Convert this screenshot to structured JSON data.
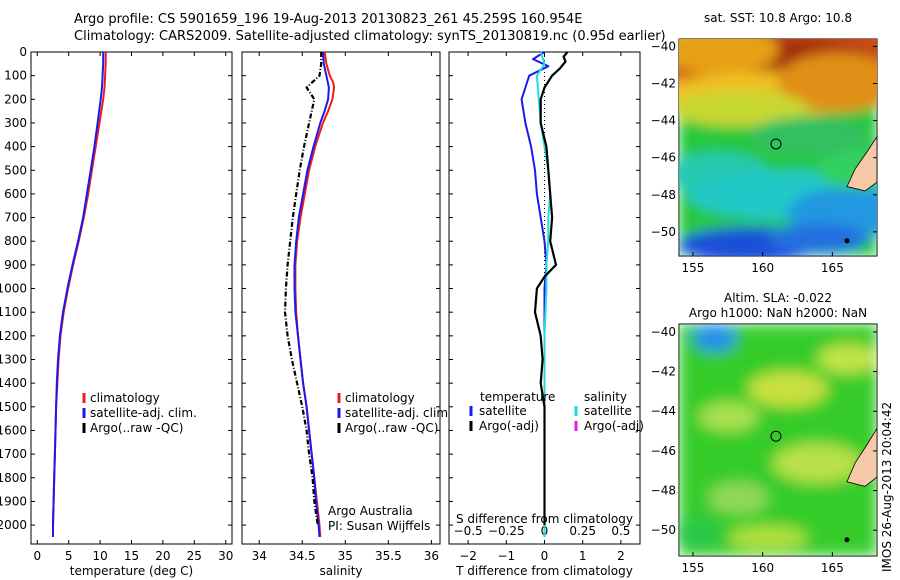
{
  "header": {
    "line1": "Argo profile: CS 5901659_196 19-Aug-2013 20130823_261 45.259S 160.954E",
    "line2": "Climatology: CARS2009. Satellite-adjusted climatology: synTS_20130819.nc (0.95d earlier)"
  },
  "side_text": "IMOS 26-Aug-2013 20:04:42",
  "colors": {
    "red": "#ee1c1c",
    "blue": "#1a1aee",
    "black": "#000000",
    "cyan": "#22dddd",
    "magenta": "#dd22dd"
  },
  "chart_data": [
    {
      "type": "line",
      "panel": "temperature",
      "xlabel": "temperature (deg C)",
      "xlim": [
        -1,
        31
      ],
      "xticks": [
        0,
        5,
        10,
        15,
        20,
        25,
        30
      ],
      "ylim": [
        2080,
        0
      ],
      "yticks": [
        0,
        100,
        200,
        300,
        400,
        500,
        600,
        700,
        800,
        900,
        1000,
        1100,
        1200,
        1300,
        1400,
        1500,
        1600,
        1700,
        1800,
        1900,
        2000
      ],
      "legend": [
        "climatology",
        "satellite-adj. clim.",
        "Argo(..raw -QC)"
      ],
      "series": [
        {
          "name": "climatology",
          "color": "red",
          "depth": [
            0,
            50,
            100,
            150,
            200,
            300,
            400,
            500,
            600,
            700,
            800,
            900,
            1000,
            1100,
            1200,
            1300,
            1400,
            1500,
            1600,
            1700,
            1800,
            1900,
            2000,
            2050
          ],
          "values": [
            10.9,
            10.9,
            10.8,
            10.7,
            10.5,
            9.9,
            9.3,
            8.7,
            8.1,
            7.4,
            6.6,
            5.7,
            4.9,
            4.2,
            3.7,
            3.4,
            3.2,
            3.0,
            2.9,
            2.8,
            2.7,
            2.6,
            2.5,
            2.5
          ]
        },
        {
          "name": "satellite-adj. clim.",
          "color": "blue",
          "depth": [
            0,
            50,
            100,
            150,
            200,
            300,
            400,
            500,
            600,
            700,
            800,
            900,
            1000,
            1100,
            1200,
            1300,
            1400,
            1500,
            1600,
            1700,
            1800,
            1900,
            2000,
            2050
          ],
          "values": [
            10.5,
            10.5,
            10.4,
            10.3,
            10.1,
            9.6,
            9.1,
            8.5,
            7.9,
            7.3,
            6.5,
            5.6,
            4.8,
            4.1,
            3.6,
            3.3,
            3.1,
            3.0,
            2.9,
            2.8,
            2.7,
            2.6,
            2.5,
            2.5
          ]
        }
      ]
    },
    {
      "type": "line",
      "panel": "salinity",
      "xlabel": "salinity",
      "xlim": [
        33.8,
        36.1
      ],
      "xticks": [
        34,
        34.5,
        35,
        35.5,
        36
      ],
      "ylim": [
        2080,
        0
      ],
      "legend": [
        "climatology",
        "satellite-adj. clim.",
        "Argo(..raw -QC)"
      ],
      "annotation": [
        "Argo Australia",
        "PI: Susan Wijffels"
      ],
      "series": [
        {
          "name": "climatology",
          "color": "red",
          "depth": [
            0,
            50,
            100,
            130,
            150,
            200,
            250,
            300,
            400,
            500,
            600,
            700,
            800,
            900,
            1000,
            1100,
            1200,
            1300,
            1400,
            1500,
            1600,
            1700,
            1800,
            1900,
            2000,
            2050
          ],
          "values": [
            34.76,
            34.78,
            34.82,
            34.86,
            34.87,
            34.85,
            34.8,
            34.74,
            34.65,
            34.58,
            34.53,
            34.48,
            34.44,
            34.42,
            34.42,
            34.43,
            34.45,
            34.48,
            34.51,
            34.55,
            34.58,
            34.61,
            34.64,
            34.67,
            34.7,
            34.71
          ]
        },
        {
          "name": "satellite-adj. clim.",
          "color": "blue",
          "depth": [
            0,
            50,
            100,
            150,
            200,
            250,
            300,
            400,
            500,
            600,
            700,
            800,
            900,
            1000,
            1100,
            1200,
            1300,
            1400,
            1500,
            1600,
            1700,
            1800,
            1900,
            2000,
            2050
          ],
          "values": [
            34.74,
            34.75,
            34.78,
            34.81,
            34.8,
            34.76,
            34.71,
            34.63,
            34.56,
            34.51,
            34.46,
            34.43,
            34.41,
            34.41,
            34.42,
            34.45,
            34.48,
            34.51,
            34.55,
            34.58,
            34.61,
            34.64,
            34.66,
            34.69,
            34.7
          ]
        },
        {
          "name": "Argo(..raw -QC)",
          "color": "black",
          "style": "dashdot",
          "depth": [
            0,
            50,
            100,
            150,
            200,
            300,
            400,
            500,
            600,
            700,
            800,
            900,
            1000,
            1100,
            1200,
            1300,
            1400,
            1500,
            1600,
            1700,
            1800,
            1900,
            1950,
            2000
          ],
          "values": [
            34.72,
            34.72,
            34.7,
            34.55,
            34.64,
            34.58,
            34.52,
            34.47,
            34.43,
            34.39,
            34.36,
            34.33,
            34.31,
            34.3,
            34.33,
            34.38,
            34.44,
            34.5,
            34.55,
            34.58,
            34.62,
            34.64,
            34.66,
            34.68
          ]
        }
      ]
    },
    {
      "type": "line",
      "panel": "difference",
      "xlabel": "T difference from climatology",
      "xlabel2": "S difference from climatology",
      "xlim": [
        -2.5,
        2.5
      ],
      "xticks": [
        -2,
        -1,
        0,
        1,
        2
      ],
      "xticks2": [
        -0.5,
        -0.25,
        0,
        0.25,
        0.5
      ],
      "ylim": [
        2080,
        0
      ],
      "legend_titles": [
        "temperature",
        "salinity"
      ],
      "legend": [
        "satellite",
        "Argo(-adj)",
        "satellite",
        "Argo(-adj)"
      ],
      "series": [
        {
          "name": "satellite",
          "color": "blue",
          "depth": [
            0,
            30,
            60,
            100,
            150,
            200,
            300,
            400,
            500,
            600,
            700,
            800,
            900,
            1000,
            1100,
            1200,
            1400,
            1600,
            1800,
            2050
          ],
          "values": [
            0.0,
            -0.3,
            0.1,
            -0.4,
            -0.5,
            -0.6,
            -0.5,
            -0.35,
            -0.25,
            -0.2,
            -0.1,
            0.0,
            0.05,
            0.0,
            0.0,
            0.0,
            0.0,
            0.0,
            0.0,
            0.0
          ]
        },
        {
          "name": "satellite",
          "color": "cyan",
          "depth": [
            0,
            50,
            100,
            200,
            300,
            400,
            500,
            600,
            700,
            800,
            900,
            1000,
            1200,
            1400,
            1600,
            1800,
            2050
          ],
          "values": [
            -0.1,
            0.0,
            -0.2,
            -0.15,
            -0.1,
            0.0,
            0.1,
            0.15,
            0.1,
            0.1,
            0.05,
            0.05,
            0.0,
            0.0,
            0.0,
            0.0,
            0.0
          ]
        },
        {
          "name": "Argo(-adj)",
          "color": "black",
          "depth": [
            0,
            20,
            40,
            70,
            100,
            150,
            200,
            300,
            400,
            500,
            600,
            700,
            800,
            900,
            950,
            1000,
            1100,
            1200,
            1300,
            1400,
            1500,
            1600,
            1800,
            2000
          ],
          "values": [
            0.6,
            0.5,
            0.55,
            0.4,
            0.2,
            0.0,
            -0.1,
            -0.1,
            0.05,
            0.1,
            0.15,
            0.2,
            0.15,
            0.3,
            0.0,
            -0.2,
            -0.25,
            -0.1,
            -0.05,
            -0.1,
            0.0,
            0.0,
            0.0,
            0.0
          ]
        }
      ]
    },
    {
      "type": "heatmap",
      "panel": "sst_map",
      "title": "sat. SST: 10.8 Argo: 10.8",
      "xticks": [
        155,
        160,
        165
      ],
      "yticks": [
        -40,
        -42,
        -44,
        -46,
        -48,
        -50
      ],
      "marker": [
        160.954,
        -45.259
      ]
    },
    {
      "type": "heatmap",
      "panel": "sla_map",
      "title": [
        "Altim. SLA: -0.022",
        "Argo h1000: NaN h2000: NaN"
      ],
      "xticks": [
        155,
        160,
        165
      ],
      "yticks": [
        -40,
        -42,
        -44,
        -46,
        -48,
        -50
      ],
      "marker": [
        160.954,
        -45.259
      ]
    }
  ]
}
